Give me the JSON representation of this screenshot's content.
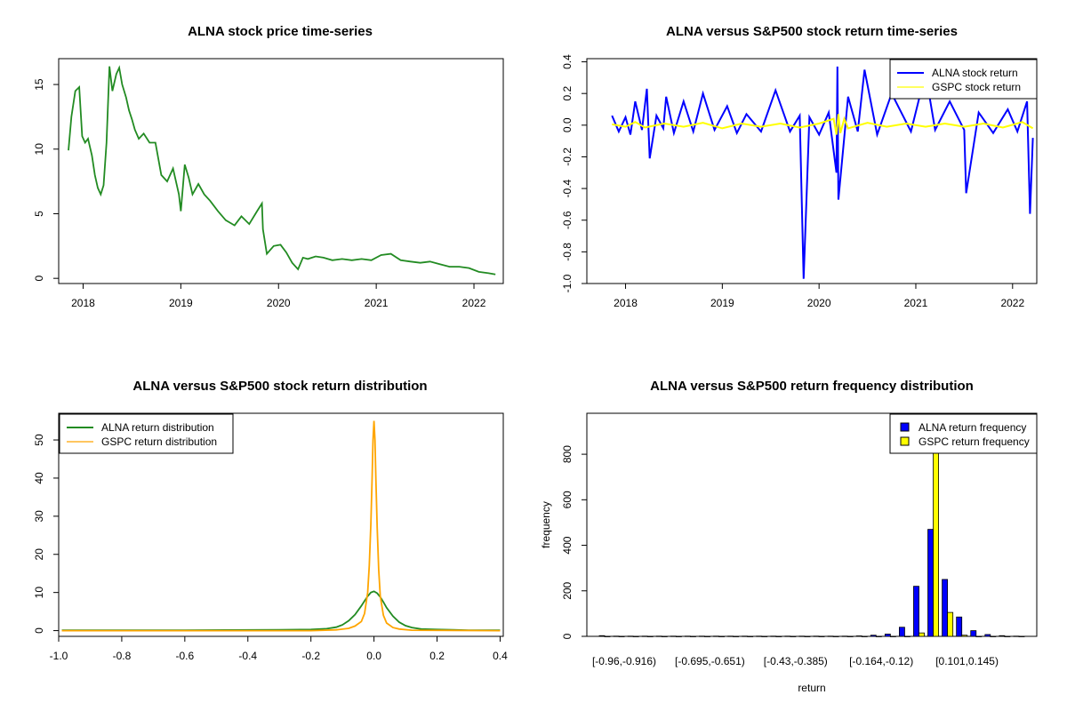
{
  "chart_data": [
    {
      "type": "line",
      "title": "ALNA stock price time-series",
      "xlabel": "",
      "ylabel": "",
      "xlim": [
        2017.75,
        2022.3
      ],
      "ylim": [
        -0.4,
        17
      ],
      "xticks": [
        2018,
        2019,
        2020,
        2021,
        2022
      ],
      "xtick_labels": [
        "2018",
        "2019",
        "2020",
        "2021",
        "2022"
      ],
      "yticks": [
        0,
        5,
        10,
        15
      ],
      "ytick_labels": [
        "0",
        "5",
        "10",
        "15"
      ],
      "series": [
        {
          "color": "#228b22",
          "x": [
            2017.85,
            2017.88,
            2017.92,
            2017.96,
            2017.99,
            2018.02,
            2018.05,
            2018.09,
            2018.12,
            2018.15,
            2018.18,
            2018.21,
            2018.24,
            2018.27,
            2018.3,
            2018.34,
            2018.37,
            2018.4,
            2018.44,
            2018.47,
            2018.5,
            2018.53,
            2018.57,
            2018.62,
            2018.68,
            2018.74,
            2018.8,
            2018.86,
            2018.92,
            2018.98,
            2019.0,
            2019.04,
            2019.08,
            2019.12,
            2019.18,
            2019.24,
            2019.3,
            2019.38,
            2019.46,
            2019.55,
            2019.62,
            2019.7,
            2019.78,
            2019.83,
            2019.84,
            2019.88,
            2019.95,
            2020.02,
            2020.08,
            2020.14,
            2020.2,
            2020.25,
            2020.3,
            2020.38,
            2020.46,
            2020.55,
            2020.65,
            2020.75,
            2020.85,
            2020.95,
            2021.05,
            2021.15,
            2021.25,
            2021.35,
            2021.45,
            2021.55,
            2021.65,
            2021.75,
            2021.85,
            2021.95,
            2022.05,
            2022.15,
            2022.22
          ],
          "y": [
            9.9,
            12.5,
            14.5,
            14.8,
            11.0,
            10.5,
            10.8,
            9.5,
            8.0,
            7.0,
            6.5,
            7.2,
            10.5,
            16.4,
            14.5,
            15.8,
            16.3,
            15.0,
            14.0,
            13.0,
            12.3,
            11.5,
            10.8,
            11.2,
            10.5,
            10.5,
            8.0,
            7.5,
            8.5,
            6.5,
            5.2,
            8.8,
            7.8,
            6.5,
            7.3,
            6.5,
            6.0,
            5.2,
            4.5,
            4.1,
            4.8,
            4.2,
            5.2,
            5.8,
            3.8,
            1.9,
            2.5,
            2.6,
            2.0,
            1.2,
            0.7,
            1.6,
            1.5,
            1.7,
            1.6,
            1.4,
            1.5,
            1.4,
            1.5,
            1.4,
            1.8,
            1.9,
            1.4,
            1.3,
            1.2,
            1.3,
            1.1,
            0.9,
            0.9,
            0.8,
            0.5,
            0.4,
            0.3
          ]
        }
      ]
    },
    {
      "type": "line",
      "title": "ALNA versus S&P500 stock return time-series",
      "xlabel": "",
      "ylabel": "",
      "xlim": [
        2017.6,
        2022.25
      ],
      "ylim": [
        -1.0,
        0.42
      ],
      "xticks": [
        2018,
        2019,
        2020,
        2021,
        2022
      ],
      "xtick_labels": [
        "2018",
        "2019",
        "2020",
        "2021",
        "2022"
      ],
      "yticks": [
        -1.0,
        -0.8,
        -0.6,
        -0.4,
        -0.2,
        0.0,
        0.2,
        0.4
      ],
      "ytick_labels": [
        "-1.0",
        "-0.8",
        "-0.6",
        "-0.4",
        "-0.2",
        "0.0",
        "0.2",
        "0.4"
      ],
      "legend": "top-right",
      "series": [
        {
          "name": "ALNA stock return",
          "color": "#0000ff",
          "x": [
            2017.86,
            2017.93,
            2018.0,
            2018.05,
            2018.1,
            2018.17,
            2018.22,
            2018.25,
            2018.32,
            2018.39,
            2018.42,
            2018.5,
            2018.6,
            2018.7,
            2018.8,
            2018.92,
            2019.05,
            2019.15,
            2019.25,
            2019.4,
            2019.55,
            2019.7,
            2019.8,
            2019.84,
            2019.9,
            2020.0,
            2020.1,
            2020.18,
            2020.19,
            2020.2,
            2020.3,
            2020.4,
            2020.47,
            2020.6,
            2020.75,
            2020.95,
            2021.1,
            2021.2,
            2021.35,
            2021.5,
            2021.52,
            2021.65,
            2021.8,
            2021.95,
            2022.05,
            2022.15,
            2022.18,
            2022.21
          ],
          "y": [
            0.06,
            -0.04,
            0.05,
            -0.06,
            0.15,
            -0.03,
            0.23,
            -0.21,
            0.06,
            -0.02,
            0.18,
            -0.05,
            0.15,
            -0.04,
            0.2,
            -0.03,
            0.12,
            -0.05,
            0.07,
            -0.04,
            0.22,
            -0.04,
            0.06,
            -0.97,
            0.05,
            -0.06,
            0.08,
            -0.3,
            0.37,
            -0.47,
            0.18,
            -0.04,
            0.35,
            -0.06,
            0.2,
            -0.04,
            0.33,
            -0.03,
            0.15,
            -0.03,
            -0.43,
            0.08,
            -0.05,
            0.1,
            -0.04,
            0.15,
            -0.56,
            -0.08
          ]
        },
        {
          "name": "GSPC stock return",
          "color": "#ffff00",
          "x": [
            2017.86,
            2018.0,
            2018.1,
            2018.2,
            2018.4,
            2018.6,
            2018.8,
            2019.0,
            2019.2,
            2019.4,
            2019.6,
            2019.8,
            2020.0,
            2020.15,
            2020.18,
            2020.2,
            2020.22,
            2020.26,
            2020.3,
            2020.5,
            2020.7,
            2020.9,
            2021.1,
            2021.3,
            2021.5,
            2021.7,
            2021.9,
            2022.1,
            2022.21
          ],
          "y": [
            0.005,
            -0.01,
            0.02,
            -0.015,
            0.01,
            -0.01,
            0.015,
            -0.02,
            0.01,
            -0.01,
            0.01,
            -0.015,
            0.01,
            0.04,
            -0.06,
            0.07,
            -0.05,
            0.04,
            -0.02,
            0.015,
            -0.01,
            0.01,
            -0.01,
            0.01,
            -0.01,
            0.01,
            -0.015,
            0.02,
            -0.02
          ]
        }
      ]
    },
    {
      "type": "line",
      "title": "ALNA versus S&P500 stock return distribution",
      "xlabel": "",
      "ylabel": "",
      "xlim": [
        -1.0,
        0.41
      ],
      "ylim": [
        -1.5,
        57
      ],
      "xticks": [
        -1.0,
        -0.8,
        -0.6,
        -0.4,
        -0.2,
        0.0,
        0.2,
        0.4
      ],
      "xtick_labels": [
        "-1.0",
        "-0.8",
        "-0.6",
        "-0.4",
        "-0.2",
        "0.0",
        "0.2",
        "0.4"
      ],
      "yticks": [
        0,
        10,
        20,
        30,
        40,
        50
      ],
      "ytick_labels": [
        "0",
        "10",
        "20",
        "30",
        "40",
        "50"
      ],
      "legend": "top-left",
      "series": [
        {
          "name": "ALNA return distribution",
          "color": "#228b22",
          "x": [
            -0.99,
            -0.6,
            -0.3,
            -0.2,
            -0.15,
            -0.12,
            -0.1,
            -0.08,
            -0.06,
            -0.04,
            -0.03,
            -0.02,
            -0.01,
            0.0,
            0.01,
            0.02,
            0.03,
            0.04,
            0.06,
            0.08,
            0.1,
            0.12,
            0.15,
            0.2,
            0.25,
            0.3,
            0.4
          ],
          "y": [
            0.1,
            0.1,
            0.2,
            0.3,
            0.5,
            0.9,
            1.5,
            2.6,
            4.2,
            6.5,
            7.8,
            9.0,
            10.0,
            10.3,
            9.8,
            8.8,
            7.5,
            6.0,
            3.8,
            2.2,
            1.3,
            0.8,
            0.4,
            0.3,
            0.2,
            0.1,
            0.1
          ]
        },
        {
          "name": "GSPC return distribution",
          "color": "#ffa500",
          "x": [
            -0.99,
            -0.2,
            -0.12,
            -0.08,
            -0.06,
            -0.04,
            -0.03,
            -0.02,
            -0.015,
            -0.01,
            -0.006,
            -0.003,
            0.0,
            0.003,
            0.006,
            0.01,
            0.015,
            0.02,
            0.03,
            0.04,
            0.06,
            0.08,
            0.12,
            0.4
          ],
          "y": [
            0.0,
            0.0,
            0.2,
            0.6,
            1.2,
            2.4,
            4.5,
            10.0,
            17.0,
            28.0,
            40.0,
            50.0,
            55.0,
            50.0,
            40.0,
            27.0,
            16.0,
            9.0,
            4.0,
            2.0,
            0.8,
            0.4,
            0.1,
            0.0
          ]
        }
      ]
    },
    {
      "type": "bar",
      "title": "ALNA versus S&P500 return frequency distribution",
      "xlabel": "return",
      "ylabel": "frequency",
      "ylim": [
        0,
        980
      ],
      "yticks": [
        0,
        200,
        400,
        600,
        800
      ],
      "ytick_labels": [
        "0",
        "200",
        "400",
        "600",
        "800"
      ],
      "legend": "top-right",
      "category_labels": [
        "[-0.96,-0.916)",
        "[-0.695,-0.651)",
        "[-0.43,-0.385)",
        "[-0.164,-0.12)",
        "[0.101,0.145)"
      ],
      "label_positions": [
        0,
        6,
        12,
        18,
        24
      ],
      "bin_count": 30,
      "series": [
        {
          "name": "ALNA return frequency",
          "color": "#0000ff",
          "values": [
            3,
            1,
            1,
            1,
            1,
            1,
            1,
            1,
            1,
            1,
            1,
            1,
            1,
            1,
            1,
            1,
            1,
            1,
            2,
            5,
            10,
            40,
            220,
            470,
            250,
            85,
            25,
            8,
            3,
            1
          ]
        },
        {
          "name": "GSPC return frequency",
          "color": "#ffff00",
          "values": [
            0,
            0,
            0,
            0,
            0,
            0,
            0,
            0,
            0,
            0,
            0,
            0,
            0,
            0,
            0,
            0,
            0,
            0,
            0,
            0,
            0,
            0,
            15,
            905,
            105,
            5,
            0,
            0,
            0,
            0
          ]
        }
      ]
    }
  ]
}
